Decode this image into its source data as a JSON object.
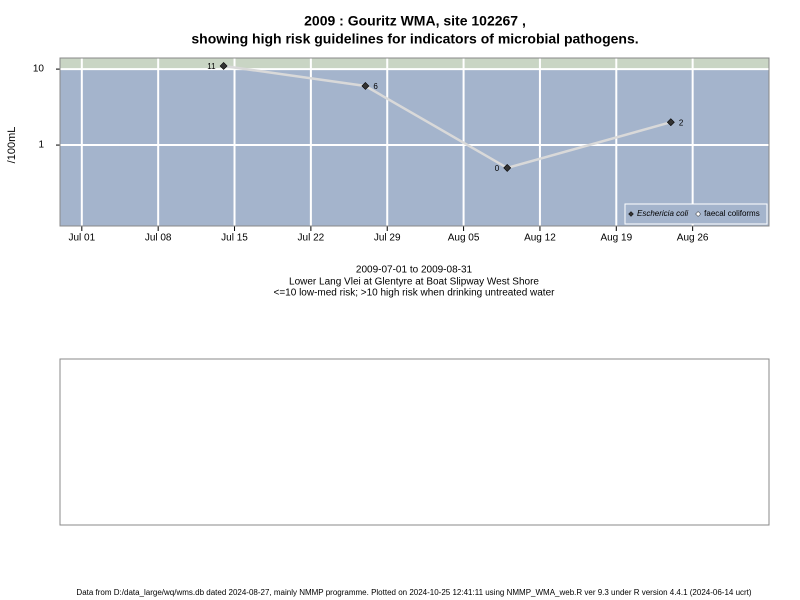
{
  "chart_data": {
    "type": "line",
    "title": "2009 : Gouritz WMA, site 102267 ,",
    "subtitle": "showing high risk guidelines for indicators of microbial pathogens.",
    "y_label": "/100mL",
    "notes": [
      "2009-07-01 to 2009-08-31",
      "Lower Lang Vlei at Glentyre at Boat Slipway West Shore",
      "<=10 low-med risk; >10 high risk when drinking untreated water"
    ],
    "footer": "Data from D:/data_large/wq/wms.db dated 2024-08-27, mainly NMMP programme. Plotted on 2024-10-25 12:41:11 using NMMP_WMA_web.R ver 9.3 under R version 4.4.1 (2024-06-14 ucrt)",
    "x": [
      "2009-07-14",
      "2009-07-27",
      "2009-08-09",
      "2009-08-24"
    ],
    "series": [
      {
        "name": "Eschericia coli",
        "color": "#333333",
        "values": [
          11,
          6,
          0.5,
          2
        ],
        "value_labels": [
          "11",
          "6",
          "0",
          "2"
        ]
      },
      {
        "name": "faecal coliforms",
        "color": "#ffffff",
        "values": [
          null,
          null,
          null,
          null
        ]
      }
    ],
    "line_color": "#d9d9d9",
    "threshold": 10,
    "threshold_color": "#c9d5c4",
    "background": "#a4b4cc",
    "log_y": true,
    "grid": true,
    "legend": "bottom-right",
    "xlim": [
      "2009-06-29",
      "2009-09-02"
    ],
    "xticks": [
      {
        "value": "2009-07-01",
        "label": "Jul 01"
      },
      {
        "value": "2009-07-08",
        "label": "Jul 08"
      },
      {
        "value": "2009-07-15",
        "label": "Jul 15"
      },
      {
        "value": "2009-07-22",
        "label": "Jul 22"
      },
      {
        "value": "2009-07-29",
        "label": "Jul 29"
      },
      {
        "value": "2009-08-05",
        "label": "Aug 05"
      },
      {
        "value": "2009-08-12",
        "label": "Aug 12"
      },
      {
        "value": "2009-08-19",
        "label": "Aug 19"
      },
      {
        "value": "2009-08-26",
        "label": "Aug 26"
      }
    ],
    "ylim": [
      0.086,
      14
    ],
    "yticks": [
      1,
      10
    ]
  }
}
